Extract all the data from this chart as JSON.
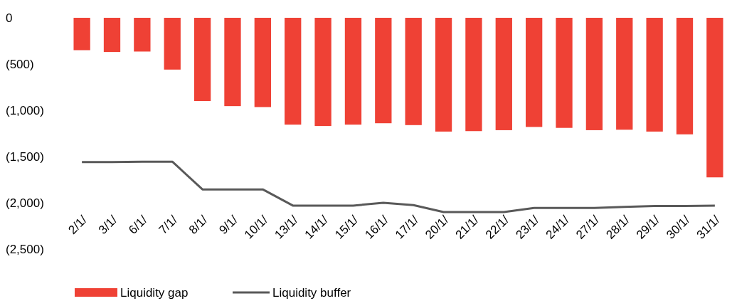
{
  "chart_data": {
    "type": "bar",
    "categories": [
      "2/1/",
      "3/1/",
      "6/1/",
      "7/1/",
      "8/1/",
      "9/1/",
      "10/1/",
      "13/1/",
      "14/1/",
      "15/1/",
      "16/1/",
      "17/1/",
      "20/1/",
      "21/1/",
      "22/1/",
      "23/1/",
      "24/1/",
      "27/1/",
      "28/1/",
      "29/1/",
      "30/1/",
      "31/1/"
    ],
    "series": [
      {
        "name": "Liquidity gap",
        "color": "#ef4135",
        "values": [
          -350,
          -370,
          -365,
          -560,
          -900,
          -955,
          -965,
          -1155,
          -1170,
          -1155,
          -1140,
          -1160,
          -1230,
          -1225,
          -1215,
          -1180,
          -1190,
          -1215,
          -1210,
          -1230,
          -1260,
          -1725
        ]
      },
      {
        "name": "Liquidity buffer",
        "type": "line",
        "color": "#595959",
        "values": [
          -1560,
          -1560,
          -1555,
          -1555,
          -1855,
          -1855,
          -1855,
          -2030,
          -2030,
          -2030,
          -2000,
          -2025,
          -2100,
          -2100,
          -2100,
          -2055,
          -2055,
          -2055,
          -2045,
          -2035,
          -2035,
          -2030
        ]
      }
    ],
    "ylim": [
      -2500,
      0
    ],
    "yticks": [
      {
        "value": 0,
        "label": "0"
      },
      {
        "value": -500,
        "label": "(500)"
      },
      {
        "value": -1000,
        "label": "(1,000)"
      },
      {
        "value": -1500,
        "label": "(1,500)"
      },
      {
        "value": -2000,
        "label": "(2,000)"
      },
      {
        "value": -2500,
        "label": "(2,500)"
      }
    ],
    "grid": false,
    "legend": "bottom left",
    "marker": "none",
    "line_style": "solid"
  }
}
